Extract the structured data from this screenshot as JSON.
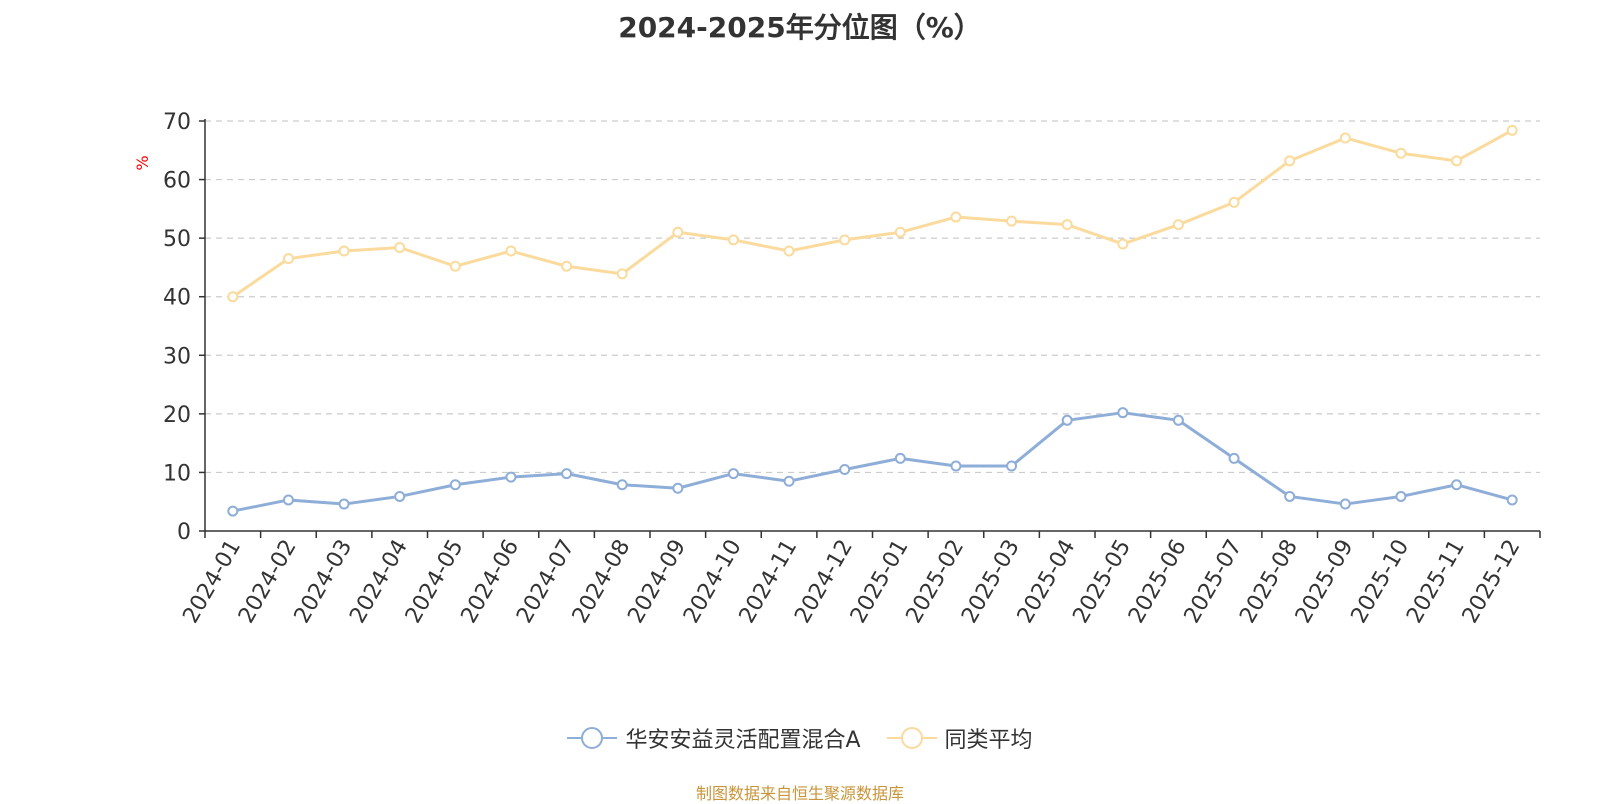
{
  "chart_data": {
    "type": "line",
    "title": "2024-2025年分位图（%）",
    "ylabel": "%",
    "xlabel": "",
    "ylim": [
      0,
      70
    ],
    "yticks": [
      0,
      10,
      20,
      30,
      40,
      50,
      60,
      70
    ],
    "grid": true,
    "legend_position": "bottom-center",
    "categories": [
      "2024-01",
      "2024-02",
      "2024-03",
      "2024-04",
      "2024-05",
      "2024-06",
      "2024-07",
      "2024-08",
      "2024-09",
      "2024-10",
      "2024-11",
      "2024-12",
      "2025-01",
      "2025-02",
      "2025-03",
      "2025-04",
      "2025-05",
      "2025-06",
      "2025-07",
      "2025-08",
      "2025-09",
      "2025-10",
      "2025-11",
      "2025-12"
    ],
    "series": [
      {
        "name": "华安安益灵活配置混合A",
        "color": "#8eaed8",
        "values": [
          3.4,
          5.3,
          4.6,
          5.9,
          7.9,
          9.2,
          9.8,
          7.9,
          7.3,
          9.8,
          8.5,
          10.5,
          12.4,
          11.1,
          11.1,
          18.9,
          20.2,
          18.9,
          12.4,
          5.9,
          4.6,
          5.9,
          7.9,
          5.3
        ]
      },
      {
        "name": "同类平均",
        "color": "#fbdb9d",
        "values": [
          40.0,
          46.5,
          47.8,
          48.4,
          45.2,
          47.8,
          45.2,
          43.9,
          51.0,
          49.7,
          47.8,
          49.7,
          51.0,
          53.6,
          52.9,
          52.3,
          49.0,
          52.3,
          56.1,
          63.2,
          67.1,
          64.5,
          63.2,
          68.4
        ]
      }
    ]
  },
  "source_note": "制图数据来自恒生聚源数据库"
}
